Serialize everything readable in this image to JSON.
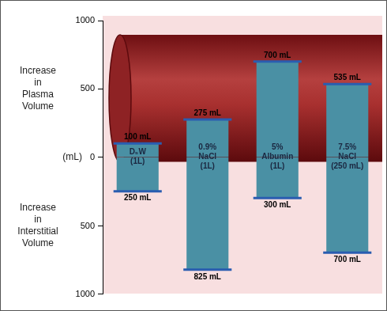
{
  "chart_data": {
    "type": "bar",
    "y_label": "(mL)",
    "categories": [
      "D₅W\n(1L)",
      "0.9%\nNaCl\n(1L)",
      "5%\nAlbumin\n(1L)",
      "7.5%\nNaCl\n(250 mL)"
    ],
    "series": [
      {
        "name": "Increase in Plasma Volume",
        "color": "#4a90a4",
        "values": [
          100,
          275,
          700,
          535
        ],
        "value_labels": [
          "100 mL",
          "275 mL",
          "700 mL",
          "535 mL"
        ]
      },
      {
        "name": "Increase in Interstitial Volume",
        "color": "#4a90a4",
        "axis": "y2",
        "values": [
          250,
          825,
          300,
          700
        ],
        "value_labels": [
          "250 mL",
          "825 mL",
          "300 mL",
          "700 mL"
        ]
      }
    ],
    "ylim": [
      -1000,
      1000
    ],
    "yticks": [
      0,
      500,
      1000
    ],
    "y2lim": [
      1000,
      -1000
    ],
    "y2ticks": [
      500,
      1000
    ],
    "data_labels": true,
    "tick_labels": "y",
    "grid": false
  }
}
